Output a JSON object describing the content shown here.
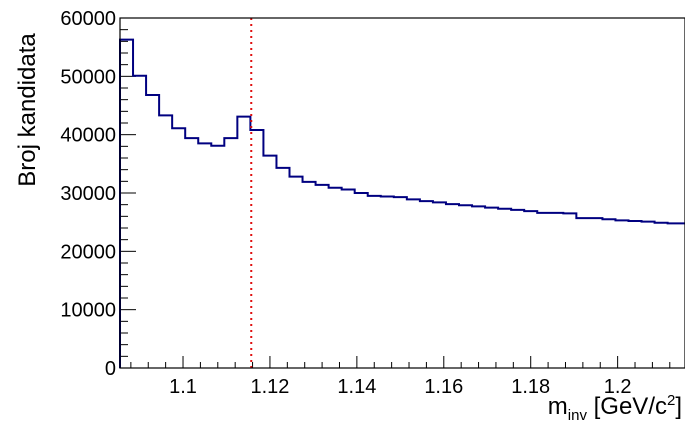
{
  "chart_data": {
    "type": "step",
    "title": "",
    "xlabel": {
      "main": "m",
      "subscript": "inv",
      "unit_prefix": " [GeV/c",
      "unit_sup": "2",
      "unit_suffix": "]"
    },
    "ylabel": "Broj kandidata",
    "xlim": [
      1.0855,
      1.2155
    ],
    "ylim": [
      0,
      60000
    ],
    "x_ticks": [
      1.1,
      1.12,
      1.14,
      1.16,
      1.18,
      1.2
    ],
    "x_tick_labels": [
      "1.1",
      "1.12",
      "1.14",
      "1.16",
      "1.18",
      "1.2"
    ],
    "y_ticks": [
      0,
      10000,
      20000,
      30000,
      40000,
      50000,
      60000
    ],
    "y_tick_labels": [
      "0",
      "10000",
      "20000",
      "30000",
      "40000",
      "50000",
      "60000"
    ],
    "bin_width": 0.003,
    "bin_edges_start": 1.0855,
    "values": [
      56300,
      50100,
      46800,
      43300,
      41100,
      39400,
      38500,
      38100,
      39400,
      43100,
      40800,
      36400,
      34300,
      32800,
      31900,
      31400,
      30900,
      30600,
      30000,
      29500,
      29400,
      29300,
      28900,
      28600,
      28400,
      28100,
      27900,
      27700,
      27500,
      27300,
      27100,
      26900,
      26600,
      26600,
      26500,
      25700,
      25700,
      25500,
      25300,
      25200,
      25100,
      24900,
      24800,
      24800
    ],
    "marker_line": {
      "x": 1.1157,
      "color": "#e01010",
      "style": "dotted"
    },
    "line_color": "#000080",
    "grid": false,
    "legend": "none"
  }
}
